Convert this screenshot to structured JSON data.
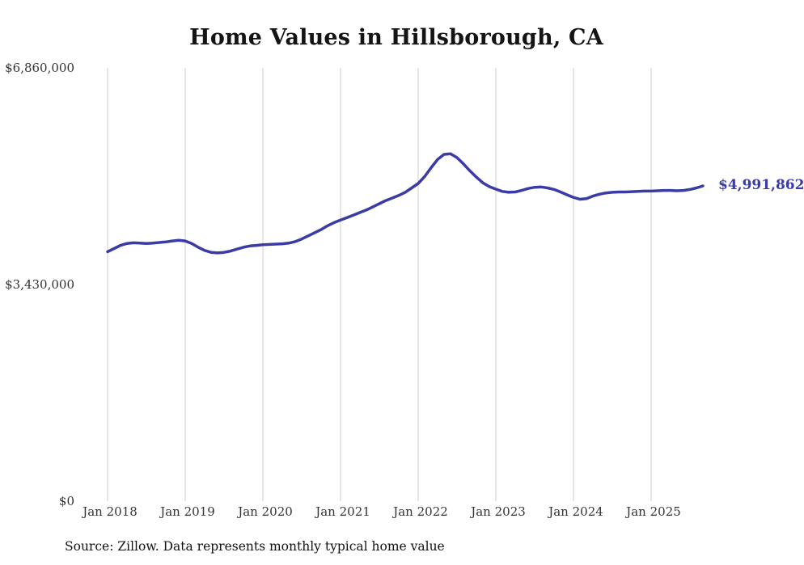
{
  "chart_data": {
    "type": "line",
    "title": "Home Values in Hillsborough, CA",
    "source_note": "Source: Zillow. Data represents monthly typical home value",
    "x_unit": "month",
    "x_start": "Jan 2018",
    "x_end": "Sep 2025",
    "x_ticks": [
      {
        "label": "Jan 2018",
        "month_index": 0
      },
      {
        "label": "Jan 2019",
        "month_index": 12
      },
      {
        "label": "Jan 2020",
        "month_index": 24
      },
      {
        "label": "Jan 2021",
        "month_index": 36
      },
      {
        "label": "Jan 2022",
        "month_index": 48
      },
      {
        "label": "Jan 2023",
        "month_index": 60
      },
      {
        "label": "Jan 2024",
        "month_index": 72
      },
      {
        "label": "Jan 2025",
        "month_index": 84
      }
    ],
    "y_ticks": [
      {
        "label": "$6,860,000",
        "value": 6860000
      },
      {
        "label": "$3,430,000",
        "value": 3430000
      },
      {
        "label": "$0",
        "value": 0
      }
    ],
    "ylim": [
      0,
      6860000
    ],
    "grid": "vertical-only",
    "legend": "none",
    "line_color": "#3b3ba6",
    "grid_color": "#cccccc",
    "end_label": "$4,991,862",
    "latest_value": 4991862,
    "series": [
      {
        "name": "Typical home value",
        "monthly_values": [
          3950000,
          4000000,
          4050000,
          4080000,
          4090000,
          4085000,
          4080000,
          4085000,
          4095000,
          4105000,
          4120000,
          4130000,
          4120000,
          4080000,
          4020000,
          3970000,
          3940000,
          3930000,
          3940000,
          3960000,
          3990000,
          4020000,
          4040000,
          4050000,
          4060000,
          4065000,
          4070000,
          4075000,
          4085000,
          4110000,
          4150000,
          4200000,
          4250000,
          4300000,
          4360000,
          4410000,
          4450000,
          4490000,
          4530000,
          4570000,
          4610000,
          4660000,
          4710000,
          4760000,
          4800000,
          4840000,
          4890000,
          4960000,
          5030000,
          5140000,
          5280000,
          5410000,
          5490000,
          5500000,
          5440000,
          5340000,
          5230000,
          5130000,
          5040000,
          4980000,
          4940000,
          4905000,
          4890000,
          4895000,
          4920000,
          4950000,
          4970000,
          4975000,
          4960000,
          4935000,
          4895000,
          4850000,
          4810000,
          4780000,
          4790000,
          4830000,
          4860000,
          4880000,
          4890000,
          4895000,
          4895000,
          4900000,
          4905000,
          4910000,
          4910000,
          4915000,
          4920000,
          4920000,
          4915000,
          4920000,
          4935000,
          4960000,
          4991862
        ]
      }
    ]
  }
}
